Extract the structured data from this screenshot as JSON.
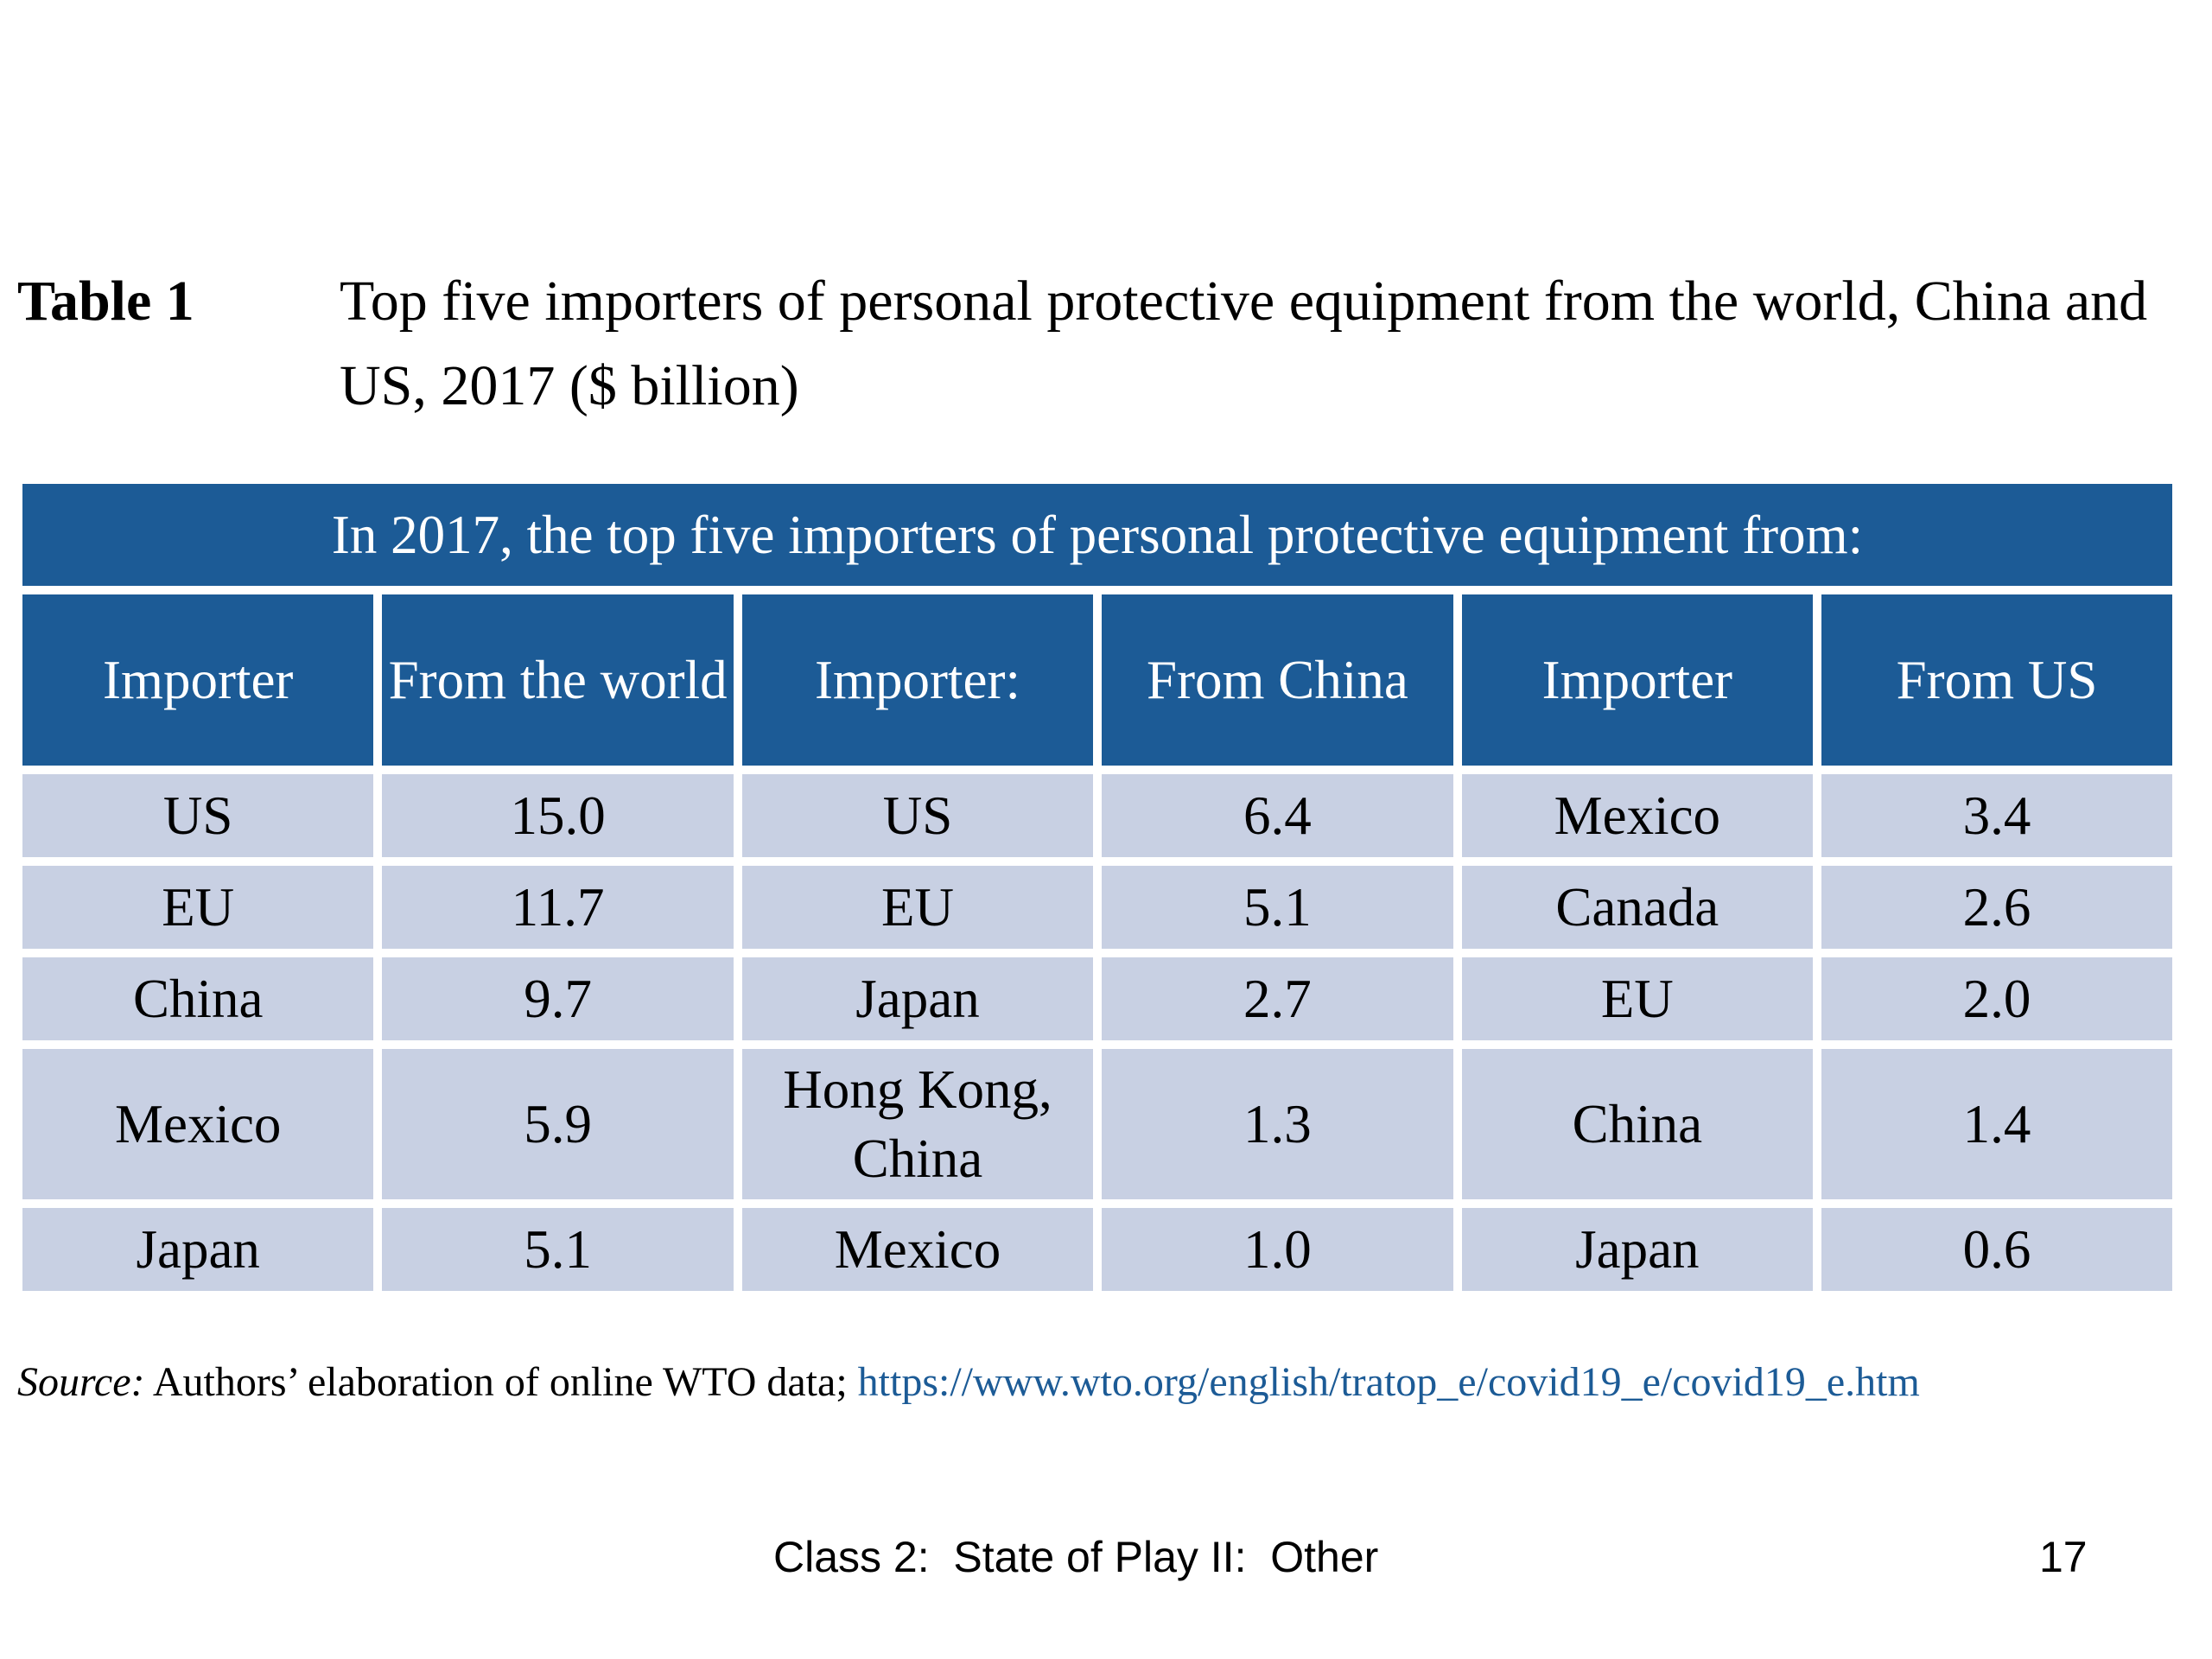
{
  "caption": {
    "label": "Table 1",
    "text": "Top five importers of personal protective equipment from the world, China and US, 2017 ($ billion)"
  },
  "table": {
    "banner": "In 2017, the top five importers of personal protective equipment from:",
    "headers": [
      "Importer",
      "From the world",
      "Importer:",
      "From China",
      "Importer",
      "From US"
    ],
    "rows": [
      [
        "US",
        "15.0",
        "US",
        "6.4",
        "Mexico",
        "3.4"
      ],
      [
        "EU",
        "11.7",
        "EU",
        "5.1",
        "Canada",
        "2.6"
      ],
      [
        "China",
        "9.7",
        "Japan",
        "2.7",
        "EU",
        "2.0"
      ],
      [
        "Mexico",
        "5.9",
        "Hong Kong, China",
        "1.3",
        "China",
        "1.4"
      ],
      [
        "Japan",
        "5.1",
        "Mexico",
        "1.0",
        "Japan",
        "0.6"
      ]
    ]
  },
  "source": {
    "label": "Source:",
    "text": "Authors’ elaboration of online WTO data;",
    "link": "https://www.wto.org/english/tratop_e/covid19_e/covid19_e.htm"
  },
  "footer": {
    "text": "Class 2:  State of Play II:  Other",
    "page_number": "17"
  },
  "colors": {
    "header_background": "#1c5b96",
    "cell_background": "#c8d0e3",
    "link": "#1c5b96"
  }
}
